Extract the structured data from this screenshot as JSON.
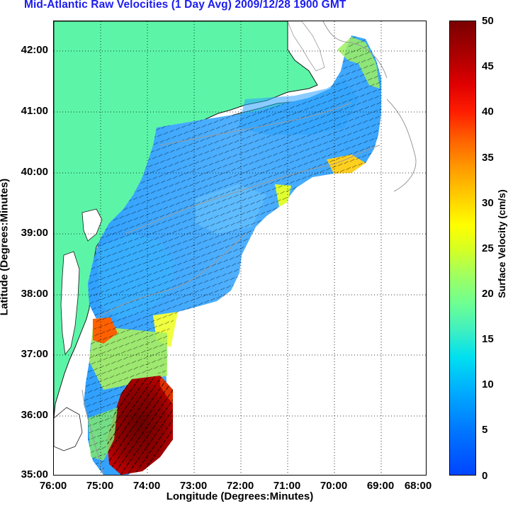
{
  "title": "Mid-Atlantic Raw Velocities (1 Day Avg) 2009/12/28 1900 GMT",
  "axes": {
    "xlabel": "Longitude (Degrees:Minutes)",
    "ylabel": "Latitude (Degrees:Minutes)",
    "xticks": [
      "76:00",
      "75:00",
      "74:00",
      "73:00",
      "72:00",
      "71:00",
      "70:00",
      "69:00",
      "68:00"
    ],
    "yticks": [
      "42:00",
      "41:00",
      "40:00",
      "39:00",
      "38:00",
      "37:00",
      "36:00",
      "35:00"
    ],
    "xlim": [
      -76,
      -68
    ],
    "ylim": [
      35,
      42.5
    ],
    "grid": true
  },
  "colorbar": {
    "label": "Surface Velocity (cm/s)",
    "ticks": [
      "50",
      "45",
      "40",
      "35",
      "30",
      "25",
      "20",
      "15",
      "10",
      "5",
      "0"
    ],
    "range": [
      0,
      50
    ]
  },
  "colors": {
    "land": "#5cf5a8",
    "title": "#1c1cf0",
    "coast": "#1a1a1a",
    "bathymetry": "#9a9a9a"
  }
}
